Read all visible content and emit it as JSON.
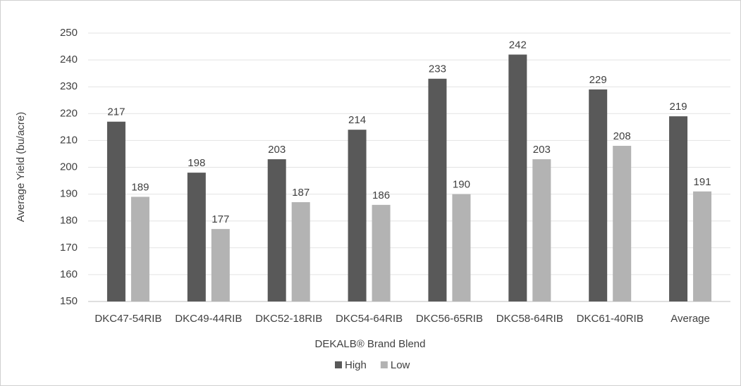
{
  "chart_data": {
    "type": "bar",
    "x_label": "DEKALB® Brand Blend",
    "y_label": "Average Yield (bu/acre)",
    "categories": [
      "DKC47-54RIB",
      "DKC49-44RIB",
      "DKC52-18RIB",
      "DKC54-64RIB",
      "DKC56-65RIB",
      "DKC58-64RIB",
      "DKC61-40RIB",
      "Average"
    ],
    "series": [
      {
        "name": "High",
        "color": "#595959",
        "values": [
          217,
          198,
          203,
          214,
          233,
          242,
          229,
          219
        ]
      },
      {
        "name": "Low",
        "color": "#b3b3b3",
        "values": [
          189,
          177,
          187,
          186,
          190,
          203,
          208,
          191
        ]
      }
    ],
    "ylim": [
      150,
      250
    ],
    "yticks": [
      150,
      160,
      170,
      180,
      190,
      200,
      210,
      220,
      230,
      240,
      250
    ],
    "grid": true,
    "legend": "bottom"
  }
}
